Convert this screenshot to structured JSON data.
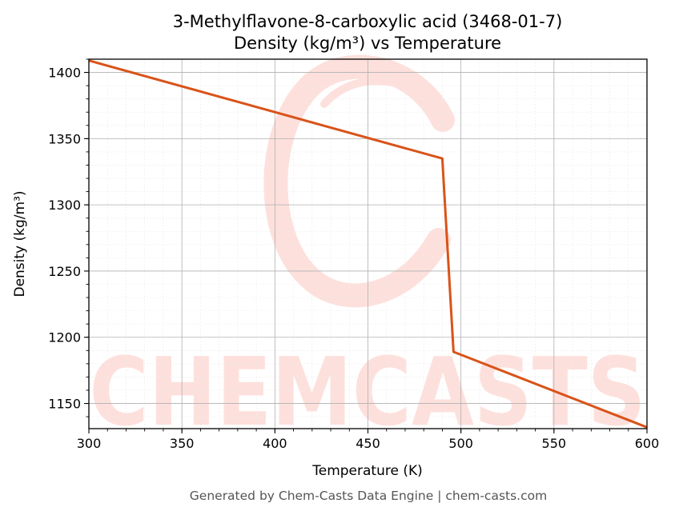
{
  "chart_data": {
    "type": "line",
    "title": "3-Methylflavone-8-carboxylic acid (3468-01-7)",
    "subtitle": "Density (kg/m³) vs Temperature",
    "xlabel": "Temperature (K)",
    "ylabel": "Density (kg/m³)",
    "xlim": [
      300,
      600
    ],
    "ylim": [
      1131,
      1410
    ],
    "xticks": [
      300,
      350,
      400,
      450,
      500,
      550,
      600
    ],
    "yticks": [
      1150,
      1200,
      1250,
      1300,
      1350,
      1400
    ],
    "grid": true,
    "series": [
      {
        "color": "#d95319",
        "x": [
          300,
          490,
          496,
          600
        ],
        "y": [
          1409,
          1335,
          1189,
          1132
        ]
      }
    ]
  },
  "watermark": {
    "text": "CHEMCASTS",
    "color": "#fde0dc"
  },
  "footer": "Generated by Chem-Casts Data Engine | chem-casts.com"
}
